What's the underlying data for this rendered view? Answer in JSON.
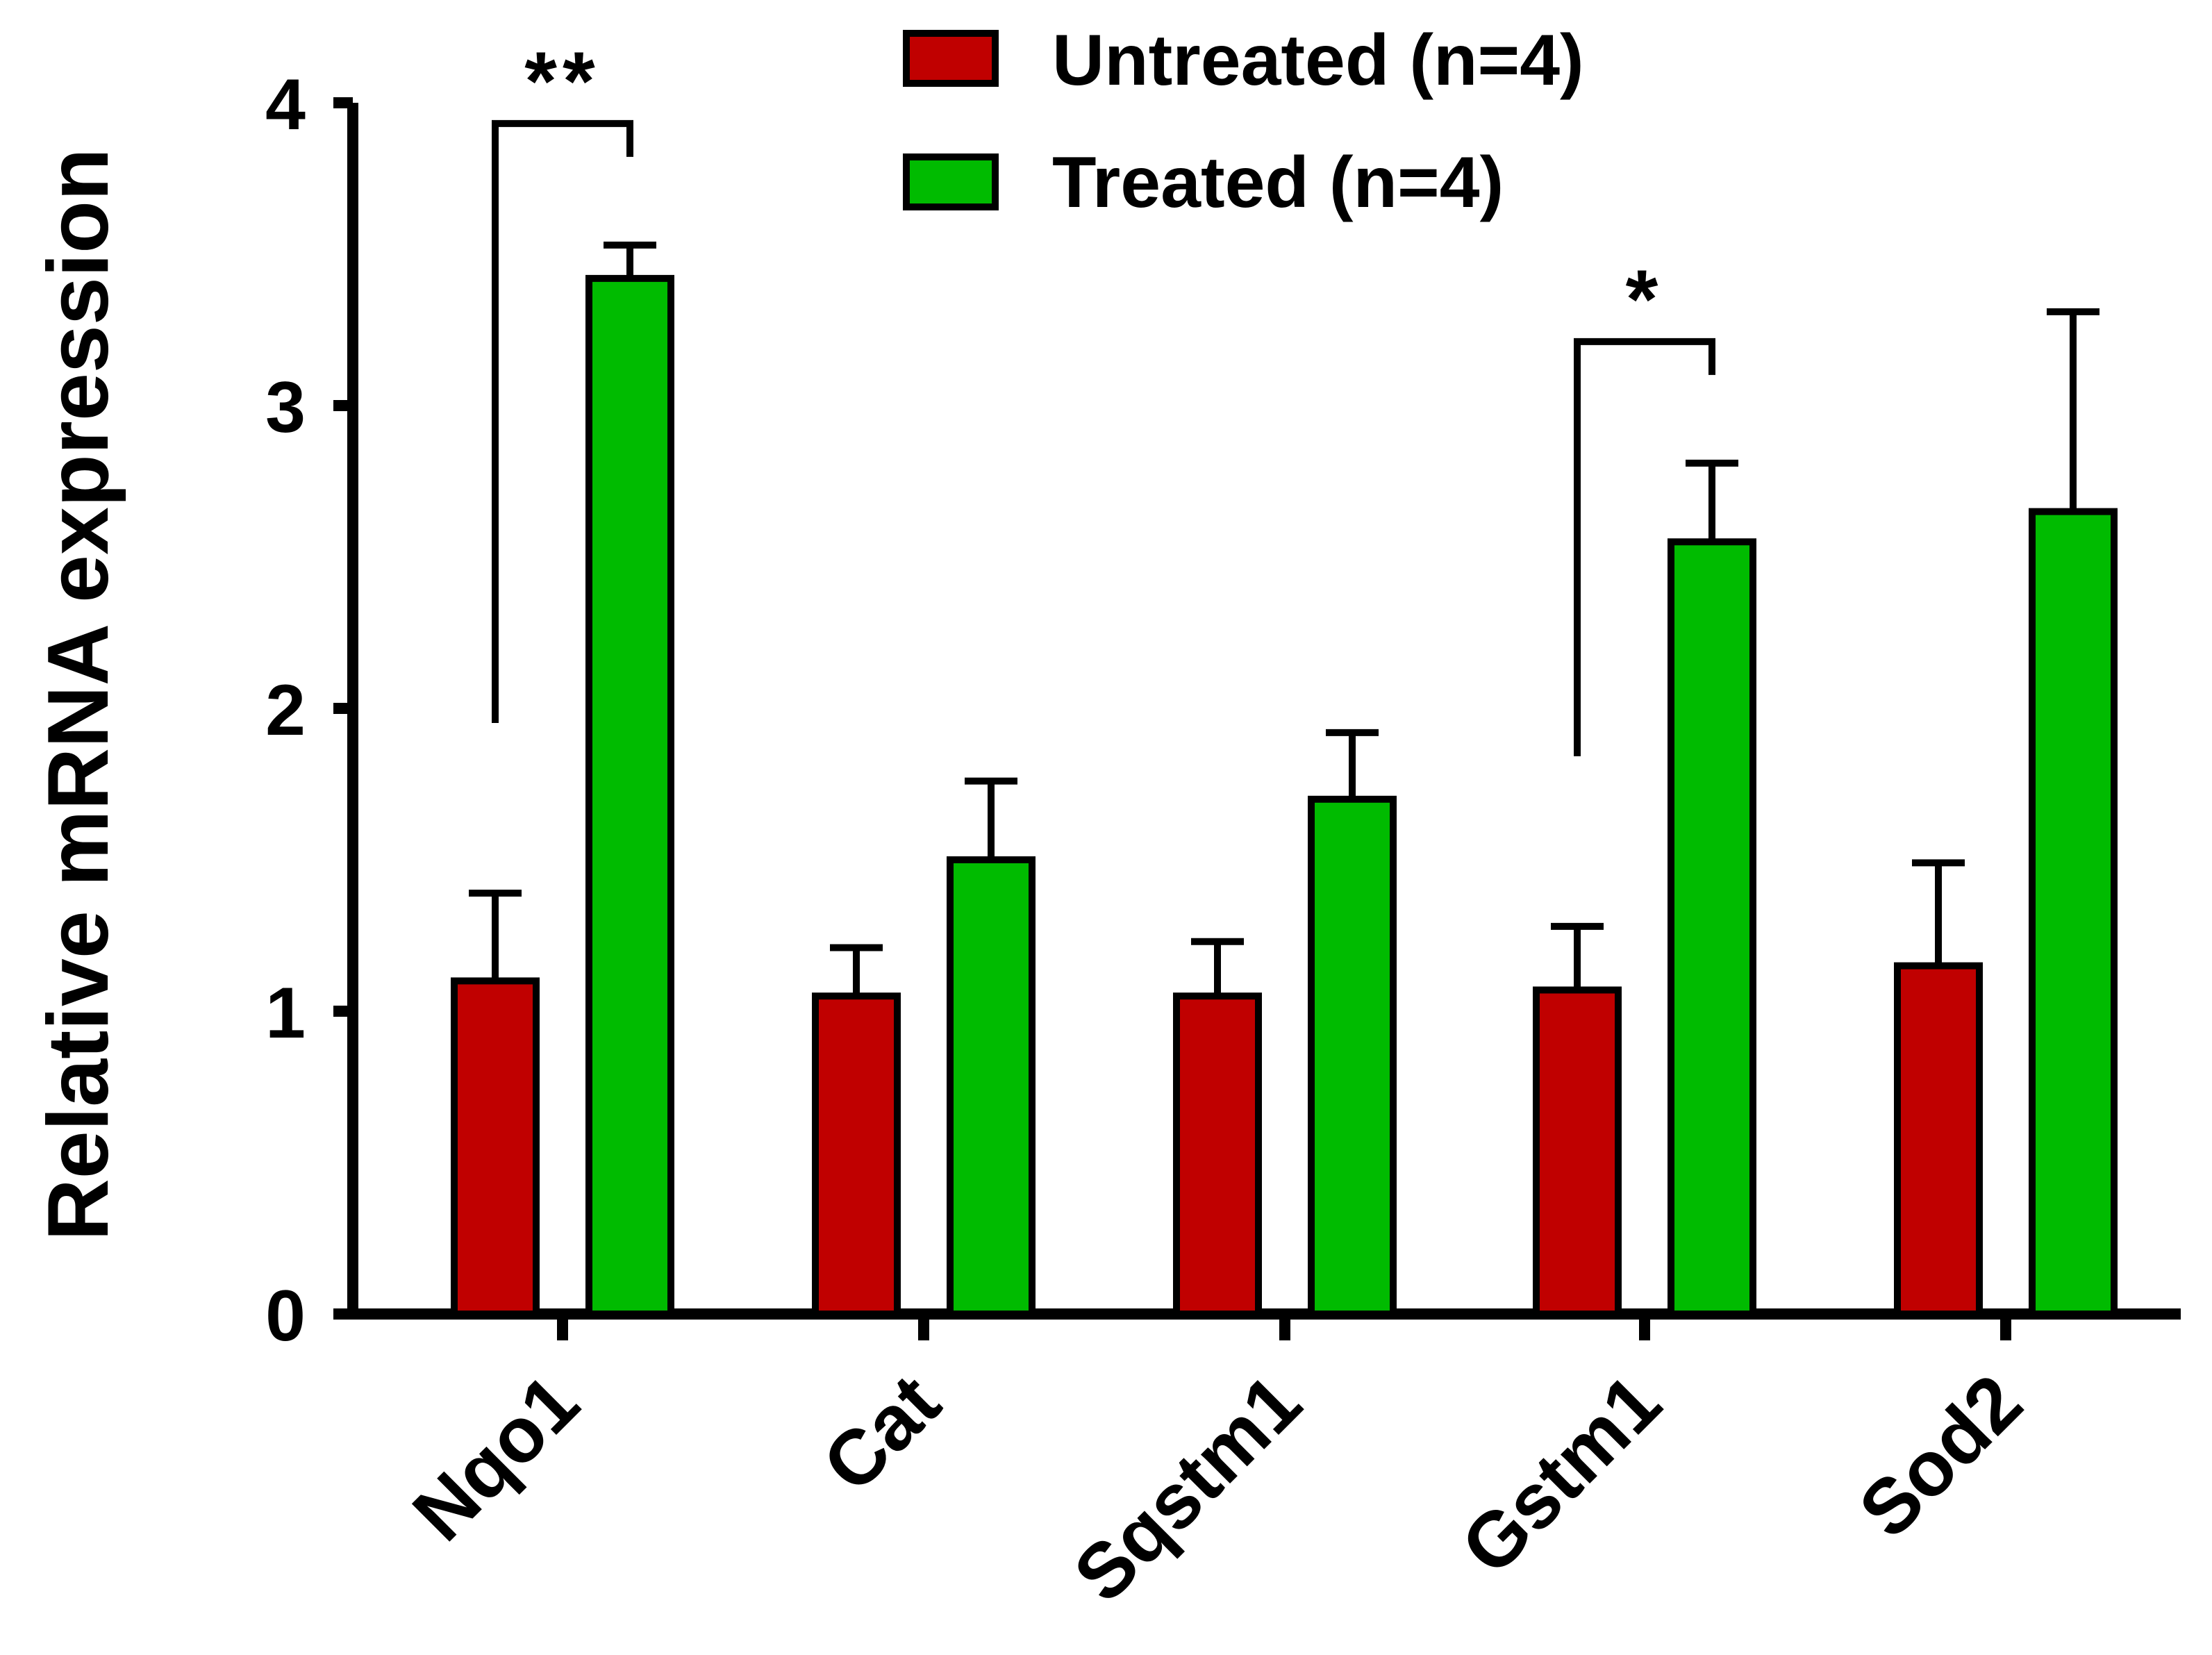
{
  "chart_data": {
    "type": "bar",
    "title": "",
    "xlabel": "",
    "ylabel": "Relative mRNA expression",
    "ylim": [
      0,
      4
    ],
    "yticks": [
      "0",
      "1",
      "2",
      "3",
      "4"
    ],
    "categories": [
      "Nqo1",
      "Cat",
      "Sqstm1",
      "Gstm1",
      "Sod2"
    ],
    "series": [
      {
        "name": "Untreated (n=4)",
        "color": "#c00000",
        "values": [
          1.1,
          1.05,
          1.05,
          1.07,
          1.15
        ],
        "errors": [
          0.29,
          0.16,
          0.18,
          0.21,
          0.34
        ]
      },
      {
        "name": "Treated (n=4)",
        "color": "#00bb00",
        "values": [
          3.42,
          1.5,
          1.7,
          2.55,
          2.65
        ],
        "errors": [
          0.11,
          0.26,
          0.22,
          0.26,
          0.66
        ]
      }
    ],
    "legend": {
      "position": "top-right"
    },
    "annotations": [
      {
        "category": "Nqo1",
        "text": "**"
      },
      {
        "category": "Gstm1",
        "text": "*"
      }
    ]
  }
}
